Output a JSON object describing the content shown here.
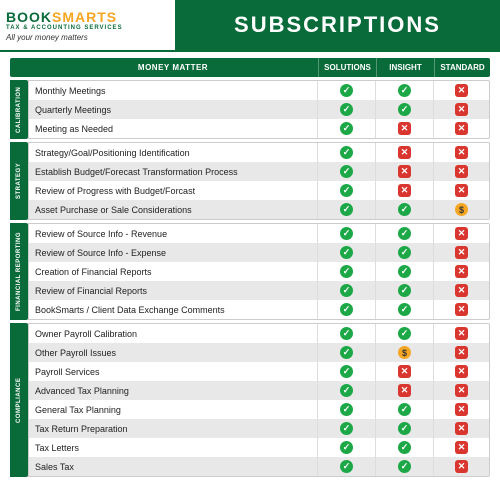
{
  "brand": {
    "name_a": "BOOK",
    "name_b": "SMARTS",
    "subtitle": "TAX & ACCOUNTING SERVICES",
    "tagline": "All your money matters"
  },
  "page_title": "SUBSCRIPTIONS",
  "columns": {
    "label": "MONEY MATTER",
    "c1": "SOLUTIONS",
    "c2": "INSIGHT",
    "c3": "STANDARD"
  },
  "glyphs": {
    "yes": "✓",
    "no": "✕",
    "dollar": "$"
  },
  "colors": {
    "brand_green": "#0a6b3a",
    "brand_orange": "#f5a623",
    "yes": "#1da847",
    "no": "#d9362f",
    "dollar": "#f5a623",
    "row_alt": "#e8e8e8"
  },
  "sections": [
    {
      "name": "CALIBRATION",
      "rows": [
        {
          "label": "Monthly Meetings",
          "v": [
            "yes",
            "yes",
            "no"
          ]
        },
        {
          "label": "Quarterly Meetings",
          "v": [
            "yes",
            "yes",
            "no"
          ]
        },
        {
          "label": "Meeting as Needed",
          "v": [
            "yes",
            "no",
            "no"
          ]
        }
      ]
    },
    {
      "name": "STRATEGY",
      "rows": [
        {
          "label": "Strategy/Goal/Positioning Identification",
          "v": [
            "yes",
            "no",
            "no"
          ]
        },
        {
          "label": "Establish Budget/Forecast Transformation Process",
          "v": [
            "yes",
            "no",
            "no"
          ]
        },
        {
          "label": "Review of Progress with Budget/Forcast",
          "v": [
            "yes",
            "no",
            "no"
          ]
        },
        {
          "label": "Asset Purchase or Sale Considerations",
          "v": [
            "yes",
            "yes",
            "dollar"
          ]
        }
      ]
    },
    {
      "name": "FINANCIAL REPORTING",
      "rows": [
        {
          "label": "Review of Source Info - Revenue",
          "v": [
            "yes",
            "yes",
            "no"
          ]
        },
        {
          "label": "Review of Source Info - Expense",
          "v": [
            "yes",
            "yes",
            "no"
          ]
        },
        {
          "label": "Creation of Financial Reports",
          "v": [
            "yes",
            "yes",
            "no"
          ]
        },
        {
          "label": "Review of Financial Reports",
          "v": [
            "yes",
            "yes",
            "no"
          ]
        },
        {
          "label": "BookSmarts / Client Data Exchange Comments",
          "v": [
            "yes",
            "yes",
            "no"
          ]
        }
      ]
    },
    {
      "name": "COMPLIANCE",
      "rows": [
        {
          "label": "Owner Payroll Calibration",
          "v": [
            "yes",
            "yes",
            "no"
          ]
        },
        {
          "label": "Other Payroll Issues",
          "v": [
            "yes",
            "dollar",
            "no"
          ]
        },
        {
          "label": "Payroll Services",
          "v": [
            "yes",
            "no",
            "no"
          ]
        },
        {
          "label": "Advanced Tax Planning",
          "v": [
            "yes",
            "no",
            "no"
          ]
        },
        {
          "label": "General Tax Planning",
          "v": [
            "yes",
            "yes",
            "no"
          ]
        },
        {
          "label": "Tax Return Preparation",
          "v": [
            "yes",
            "yes",
            "no"
          ]
        },
        {
          "label": "Tax Letters",
          "v": [
            "yes",
            "yes",
            "no"
          ]
        },
        {
          "label": "Sales Tax",
          "v": [
            "yes",
            "yes",
            "no"
          ]
        }
      ]
    }
  ]
}
